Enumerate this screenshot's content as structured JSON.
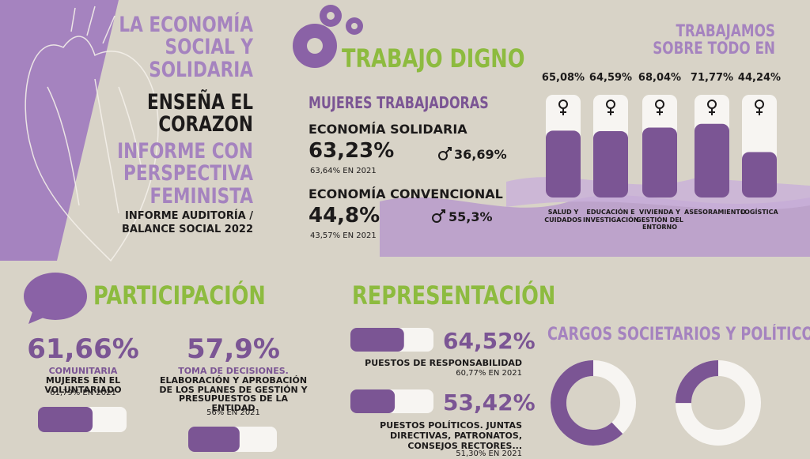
{
  "header": {
    "title_1": "LA ECONOMÍA SOCIAL Y SOLIDARIA",
    "title_2": "ENSEÑA EL CORAZON",
    "title_3": "INFORME CON PERSPECTIVA FEMINISTA",
    "subtitle": "INFORME AUDITORÍA / BALANCE SOCIAL 2022"
  },
  "trabajo_digno": {
    "title": "TRABAJO DIGNO",
    "subtitle": "MUJERES TRABAJADORAS",
    "items": [
      {
        "label": "ECONOMÍA SOLIDARIA",
        "women": {
          "value": 63.23,
          "label": "63,23%"
        },
        "men": {
          "value": 36.69,
          "label": "36,69%"
        },
        "previous": "63,64% EN 2021"
      },
      {
        "label": "ECONOMÍA CONVENCIONAL",
        "women": {
          "value": 44.8,
          "label": "44,8%"
        },
        "men": {
          "value": 55.3,
          "label": "55,3%"
        },
        "previous": "43,57% EN 2021"
      }
    ]
  },
  "sectores": {
    "title": "TRABAJAMOS SOBRE TODO EN",
    "items": [
      {
        "name": "SALUD Y CUIDADOS",
        "value": 65.08,
        "label": "65,08%"
      },
      {
        "name": "EDUCACIÓN E INVESTIGACIÓN",
        "value": 64.59,
        "label": "64,59%"
      },
      {
        "name": "VIVIENDA Y GESTIÓN DEL ENTORNO",
        "value": 68.04,
        "label": "68,04%"
      },
      {
        "name": "ASESORAMIENTO",
        "value": 71.77,
        "label": "71,77%"
      },
      {
        "name": "LOGÍSTICA",
        "value": 44.24,
        "label": "44,24%"
      }
    ]
  },
  "participacion": {
    "title": "PARTICIPACIÓN",
    "items": [
      {
        "value": 61.66,
        "label": "61,66%",
        "highlight": "COMUNITARIA",
        "text": "MUJERES EN EL VOLUNTARIADO",
        "previous": "61,79% EN 2021"
      },
      {
        "value": 57.9,
        "label": "57,9%",
        "highlight": "TOMA DE DECISIONES.",
        "text": "ELABORACIÓN Y APROBACIÓN DE LOS PLANES DE GESTIÓN Y PRESUPUESTOS DE LA ENTIDAD",
        "previous": "56% EN 2021"
      }
    ]
  },
  "representacion": {
    "title": "REPRESENTACIÓN",
    "items": [
      {
        "value": 64.52,
        "label": "64,52%",
        "text": "PUESTOS DE RESPONSABILIDAD",
        "previous": "60,77% EN 2021"
      },
      {
        "value": 53.42,
        "label": "53,42%",
        "text": "PUESTOS POLÍTICOS. JUNTAS DIRECTIVAS, PATRONATOS, CONSEJOS RECTORES...",
        "previous": "51,30% EN 2021"
      }
    ]
  },
  "cargos": {
    "title": "CARGOS SOCIETARIOS Y POLÍTICOS",
    "donuts": [
      62,
      25
    ]
  }
}
